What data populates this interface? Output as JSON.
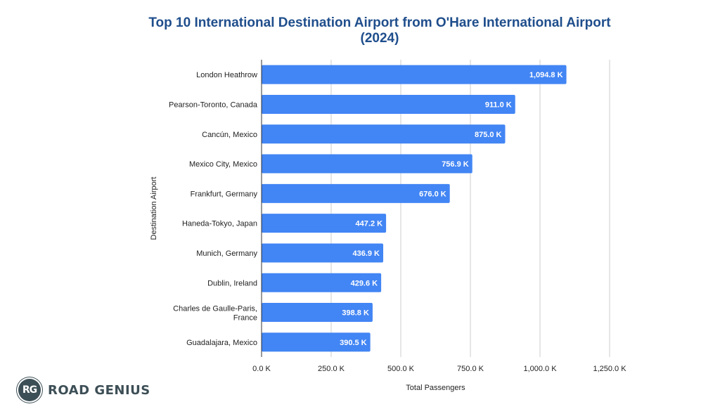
{
  "brand": {
    "badge": "RG",
    "name": "ROAD GENIUS"
  },
  "chart_data": {
    "type": "bar",
    "orientation": "horizontal",
    "title": "Top 10 International Destination Airport from O'Hare International Airport (2024)",
    "xlabel": "Total Passengers",
    "ylabel": "Destination Airport",
    "xlim": [
      0,
      1250000
    ],
    "xticks": [
      0,
      250000,
      500000,
      750000,
      1000000,
      1250000
    ],
    "xtick_labels": [
      "0.0 K",
      "250.0 K",
      "500.0 K",
      "750.0 K",
      "1,000.0 K",
      "1,250.0 K"
    ],
    "grid": "vertical",
    "bar_color": "#4285f4",
    "categories": [
      "London Heathrow",
      "Pearson-Toronto, Canada",
      "Cancún, Mexico",
      "Mexico City, Mexico",
      "Frankfurt, Germany",
      "Haneda-Tokyo, Japan",
      "Munich, Germany",
      "Dublin, Ireland",
      "Charles de Gaulle-Paris, France",
      "Guadalajara, Mexico"
    ],
    "values": [
      1094800,
      911000,
      875000,
      756900,
      676000,
      447200,
      436900,
      429600,
      398800,
      390500
    ],
    "data_labels": [
      "1,094.8 K",
      "911.0 K",
      "875.0 K",
      "756.9 K",
      "676.0 K",
      "447.2 K",
      "436.9 K",
      "429.6 K",
      "398.8 K",
      "390.5 K"
    ]
  }
}
